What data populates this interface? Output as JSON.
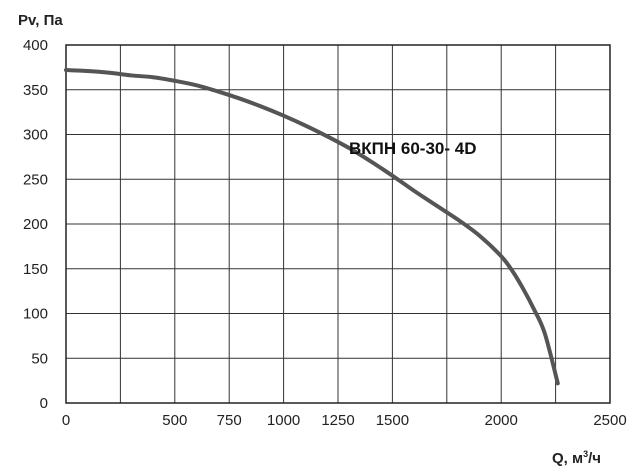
{
  "chart_data": {
    "type": "line",
    "title": "",
    "xlabel": "Q, м",
    "xlabel_sup": "3",
    "xlabel_suffix": "/ч",
    "ylabel": "Pv, Па",
    "xlim": [
      0,
      2500
    ],
    "ylim": [
      0,
      400
    ],
    "x_ticks": [
      0,
      500,
      750,
      1000,
      1250,
      1500,
      2000,
      2500
    ],
    "x_tick_labels": [
      "0",
      "500",
      "750",
      "1000",
      "1250",
      "1500",
      "2000",
      "2500"
    ],
    "x_grid": [
      0,
      250,
      500,
      750,
      1000,
      1250,
      1500,
      1750,
      2000,
      2250,
      2500
    ],
    "y_ticks": [
      0,
      50,
      100,
      150,
      200,
      250,
      300,
      350,
      400
    ],
    "y_tick_labels": [
      "0",
      "50",
      "100",
      "150",
      "200",
      "250",
      "300",
      "350",
      "400"
    ],
    "grid": true,
    "line_color": "#555555",
    "series": [
      {
        "name": "ВКПН 60-30- 4D",
        "x": [
          0,
          100,
          200,
          300,
          400,
          500,
          600,
          700,
          800,
          900,
          1000,
          1100,
          1200,
          1300,
          1400,
          1500,
          1600,
          1700,
          1800,
          1900,
          2000,
          2050,
          2100,
          2150,
          2200,
          2260
        ],
        "y": [
          372,
          371,
          369,
          366,
          364,
          360,
          355,
          348,
          340,
          331,
          321,
          310,
          298,
          285,
          270,
          254,
          237,
          221,
          205,
          187,
          164,
          148,
          128,
          105,
          78,
          22
        ]
      }
    ]
  }
}
